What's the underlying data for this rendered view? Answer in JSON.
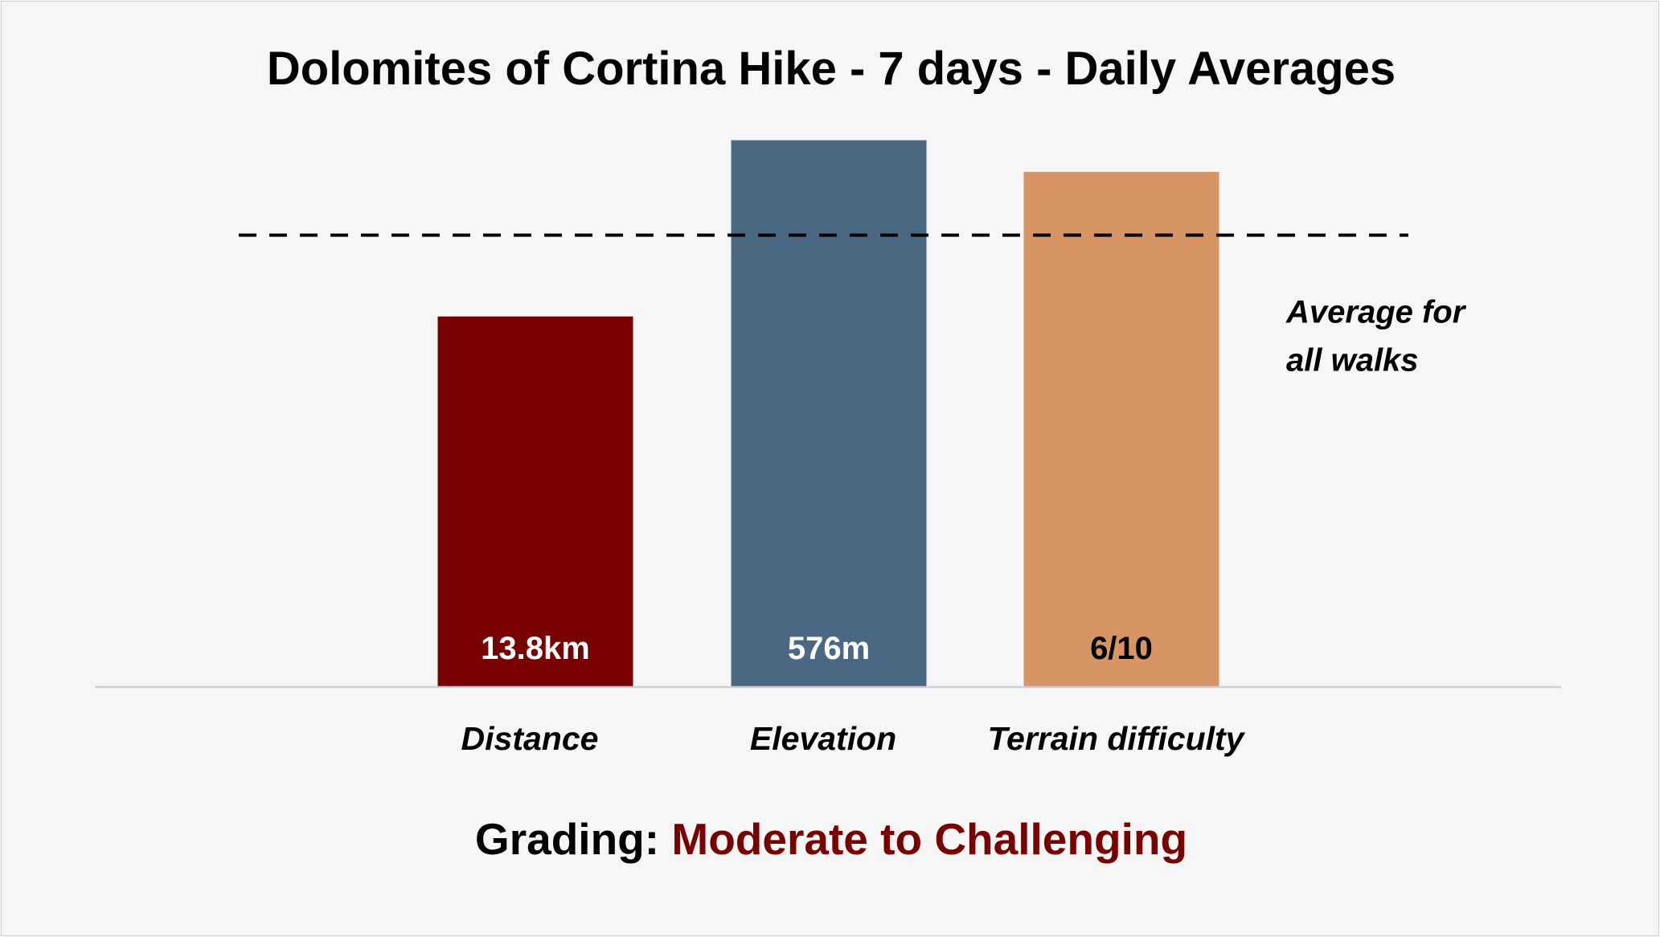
{
  "chart_data": {
    "type": "bar",
    "title": "Dolomites of Cortina Hike - 7 days - Daily Averages",
    "categories": [
      "Distance",
      "Elevation",
      "Terrain difficulty"
    ],
    "relative_to_average": [
      0.82,
      1.21,
      1.14
    ],
    "data_labels": [
      "13.8km",
      "576m",
      "6/10"
    ],
    "colors": [
      "#780000",
      "#4a6884",
      "#d79464"
    ],
    "label_colors": [
      "#ffffff",
      "#ffffff",
      "#000000"
    ],
    "reference_line": {
      "value": 1.0,
      "style": "dashed",
      "label": [
        "Average for",
        "all walks"
      ]
    },
    "ylim": [
      0,
      1.25
    ],
    "grid": false,
    "legend": "none"
  },
  "footer": {
    "grading_label": "Grading: ",
    "grading_value": "Moderate to Challenging",
    "grading_value_color": "#780000"
  }
}
